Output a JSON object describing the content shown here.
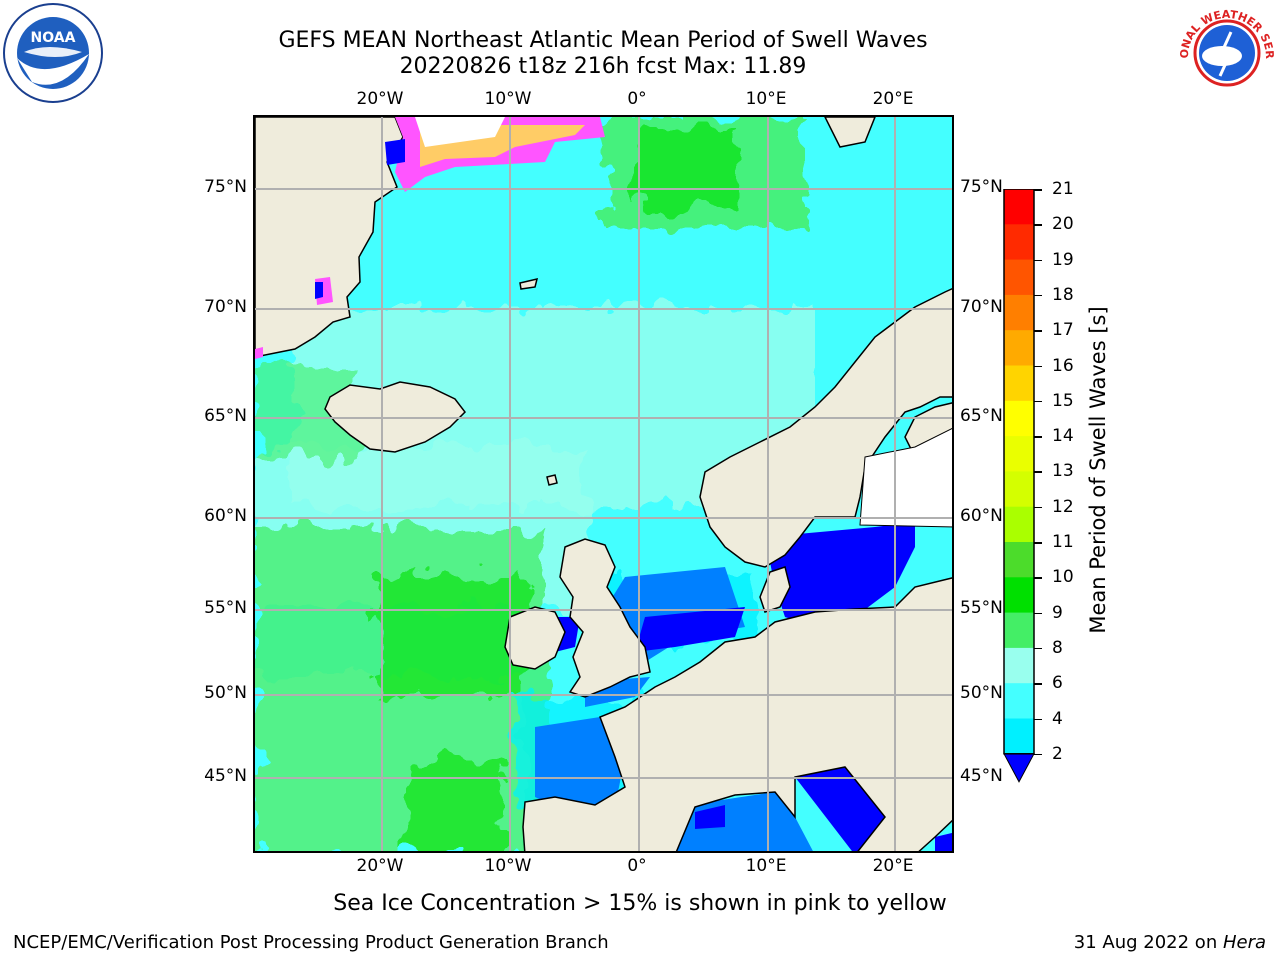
{
  "header": {
    "title_line1": "GEFS MEAN Northeast Atlantic Mean Period of Swell Waves",
    "title_line2": "20220826 t18z 216h fcst   Max: 11.89"
  },
  "logos": {
    "left": {
      "name": "noaa-logo",
      "text": "NOAA"
    },
    "right": {
      "name": "national-weather-service-logo",
      "text": "NATIONAL WEATHER SERVICE"
    }
  },
  "map": {
    "lon_ticks": [
      "20°W",
      "10°W",
      "0°",
      "10°E",
      "20°E"
    ],
    "lat_ticks": [
      "75°N",
      "70°N",
      "65°N",
      "60°N",
      "55°N",
      "50°N",
      "45°N"
    ],
    "grid": true,
    "land_color": "#efecdc",
    "ice_note": "Sea Ice Concentration > 15% is shown in pink to yellow"
  },
  "colorbar": {
    "label": "Mean Period of Swell Waves [s]",
    "ticks": [
      "21",
      "20",
      "19",
      "18",
      "17",
      "16",
      "15",
      "14",
      "13",
      "12",
      "11",
      "10",
      "9",
      "8",
      "6",
      "4",
      "2"
    ],
    "colors": [
      "#ff0000",
      "#ff2a00",
      "#ff5500",
      "#ff7f00",
      "#ffaa00",
      "#ffd400",
      "#ffff00",
      "#eaff00",
      "#d4ff00",
      "#aaff00",
      "#4cdc2b",
      "#00e000",
      "#44ee66",
      "#99ffee",
      "#44ffff",
      "#00f0ff",
      "#0080ff"
    ],
    "extend_color": "#0000ff"
  },
  "footer": {
    "left": "NCEP/EMC/Verification Post Processing Product Generation Branch",
    "right_date": "31 Aug 2022 on ",
    "right_host": "Hera"
  }
}
